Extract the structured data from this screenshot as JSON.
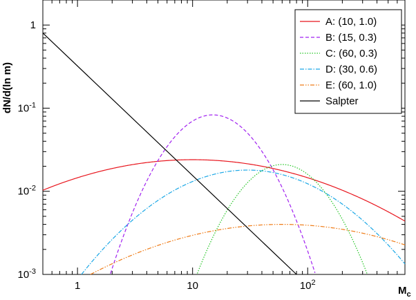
{
  "chart_data": {
    "type": "line",
    "title": "",
    "xlabel": "M",
    "xlabel_sub": "c",
    "ylabel": "dN/d(ln m)",
    "xscale": "log",
    "yscale": "log",
    "xlim": [
      0.5,
      700
    ],
    "ylim": [
      0.001,
      2.0
    ],
    "grid": false,
    "legend_position": "top-right",
    "x_ticks": [
      {
        "value": 1,
        "label": "1",
        "exp": ""
      },
      {
        "value": 10,
        "label": "10",
        "exp": ""
      },
      {
        "value": 100,
        "label": "10",
        "exp": "2"
      }
    ],
    "y_ticks": [
      {
        "value": 0.001,
        "label": "10",
        "exp": "-3"
      },
      {
        "value": 0.01,
        "label": "10",
        "exp": "-2"
      },
      {
        "value": 0.1,
        "label": "10",
        "exp": "-1"
      },
      {
        "value": 1,
        "label": "1",
        "exp": ""
      }
    ],
    "series": [
      {
        "name": "A: (10, 1.0)",
        "color": "#e8141c",
        "dash": "",
        "mode": "lognormal",
        "peak_mass": 10,
        "width": 1.0,
        "peak_value": 0.024
      },
      {
        "name": "B: (15, 0.3)",
        "color": "#a020f0",
        "dash": "5,3",
        "mode": "lognormal",
        "peak_mass": 15,
        "width": 0.3,
        "peak_value": 0.083
      },
      {
        "name": "C: (60, 0.3)",
        "color": "#22c522",
        "dash": "1.5,2",
        "mode": "lognormal",
        "peak_mass": 60,
        "width": 0.3,
        "peak_value": 0.021
      },
      {
        "name": "D: (30, 0.6)",
        "color": "#1aa7e6",
        "dash": "6,2,1.5,2",
        "mode": "lognormal",
        "peak_mass": 30,
        "width": 0.6,
        "peak_value": 0.018
      },
      {
        "name": "E: (60, 1.0)",
        "color": "#ef7b16",
        "dash": "6,2,1.5,2,1.5,2",
        "mode": "lognormal",
        "peak_mass": 60,
        "width": 1.0,
        "peak_value": 0.004
      },
      {
        "name": "Salpter",
        "color": "#000000",
        "dash": "",
        "mode": "powerlaw",
        "x": [
          0.5,
          80
        ],
        "y": [
          0.8,
          0.001
        ]
      }
    ]
  }
}
